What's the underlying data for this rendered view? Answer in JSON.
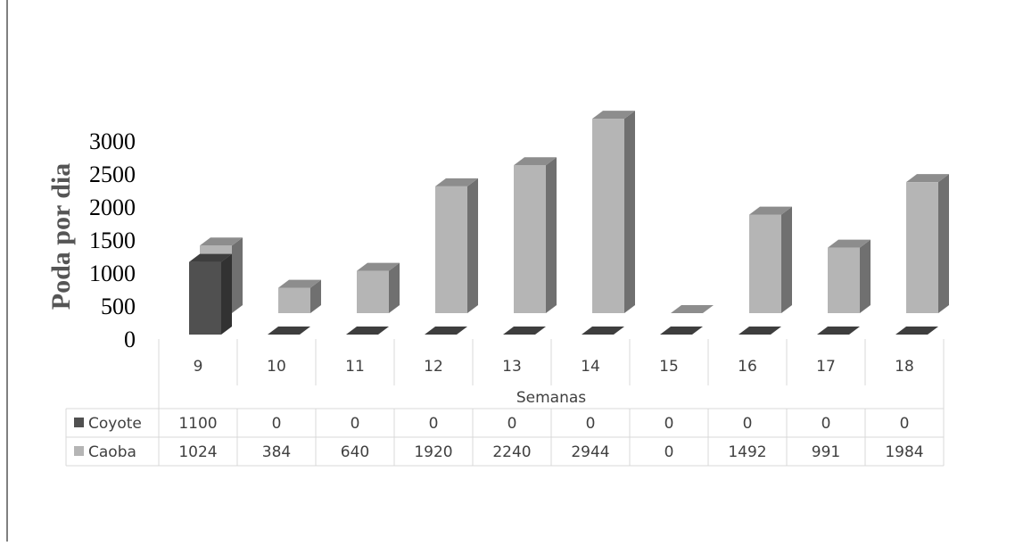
{
  "chart_data": {
    "type": "bar",
    "variant": "3d-clustered-column-with-data-table",
    "categories": [
      "9",
      "10",
      "11",
      "12",
      "13",
      "14",
      "15",
      "16",
      "17",
      "18"
    ],
    "series": [
      {
        "name": "Coyote",
        "values": [
          1100,
          0,
          0,
          0,
          0,
          0,
          0,
          0,
          0,
          0
        ],
        "color": "#505050"
      },
      {
        "name": "Caoba",
        "values": [
          1024,
          384,
          640,
          1920,
          2240,
          2944,
          0,
          1492,
          991,
          1984
        ],
        "color": "#b5b5b5"
      }
    ],
    "ylabel": "Poda por dia",
    "xlabel": "Semanas",
    "yticks": [
      "0",
      "500",
      "1000",
      "1500",
      "2000",
      "2500",
      "3000"
    ],
    "ylim": [
      0,
      3000
    ],
    "grid": false,
    "legend": "data-table"
  }
}
